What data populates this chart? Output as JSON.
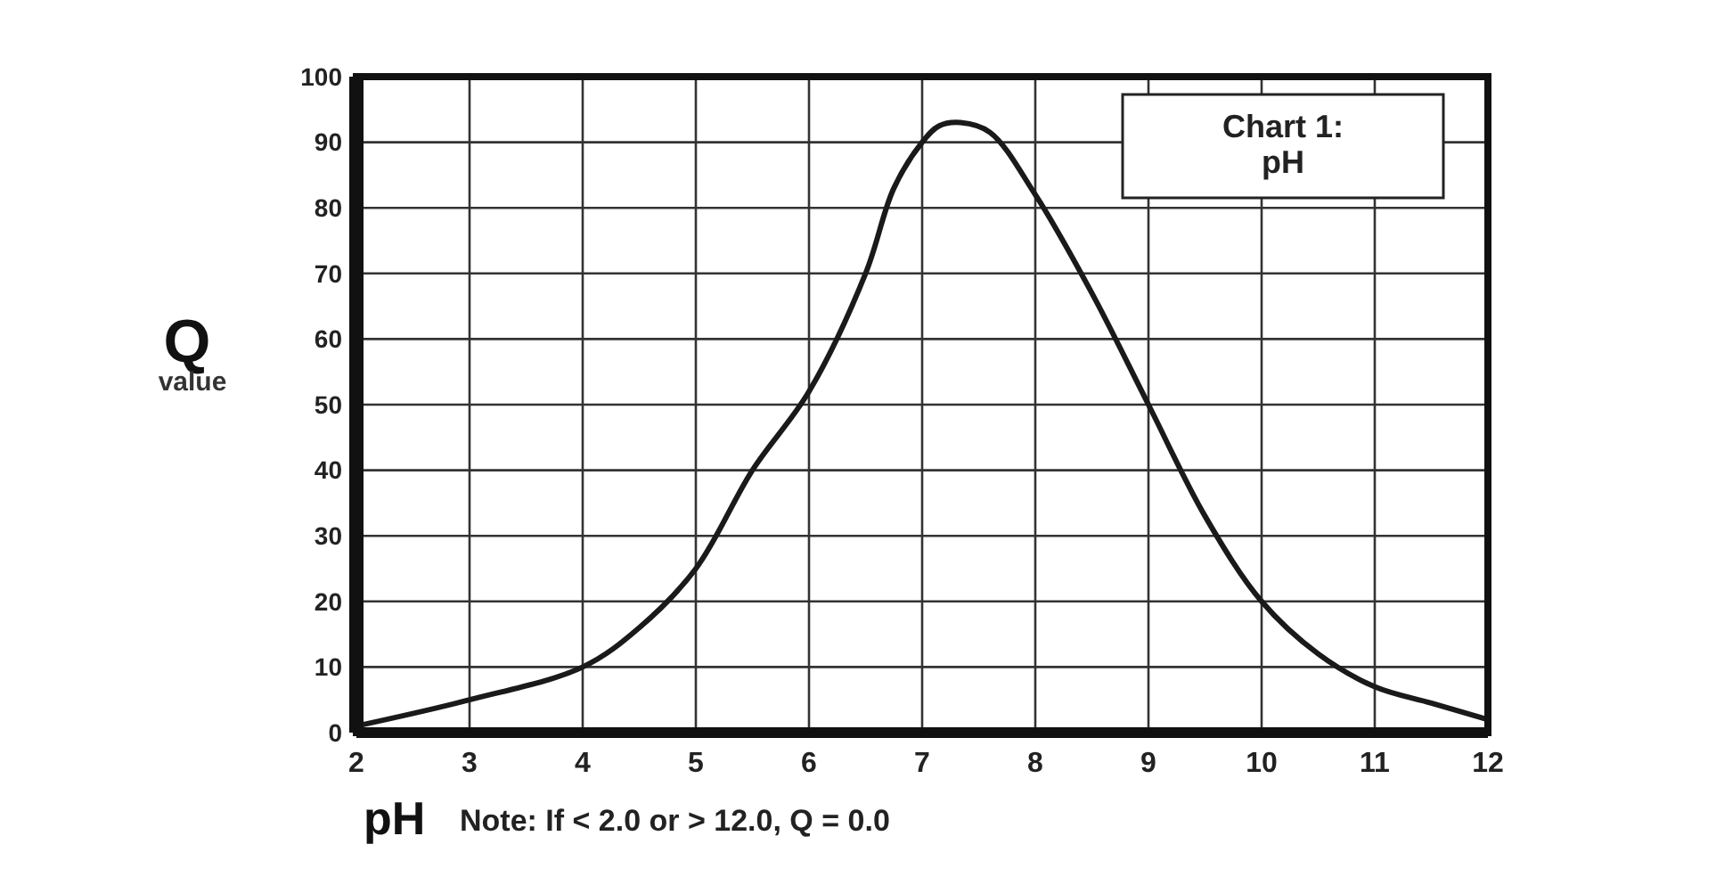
{
  "chart_data": {
    "type": "line",
    "title": "Chart 1: pH",
    "xlabel": "pH",
    "ylabel": "Q value",
    "annotations": [
      "Note: If < 2.0 or > 12.0, Q = 0.0"
    ],
    "x": [
      2,
      3,
      4,
      4.5,
      5,
      5.5,
      6,
      6.5,
      6.75,
      7,
      7.15,
      7.34,
      7.6,
      8,
      8.5,
      9,
      9.5,
      10,
      10.5,
      11,
      11.5,
      12
    ],
    "series": [
      {
        "color": "#1a1a1a",
        "values": [
          1,
          5,
          10,
          16,
          25,
          40,
          52,
          70,
          83,
          90,
          92.5,
          93,
          91.5,
          82,
          67,
          50,
          33,
          20,
          12,
          7,
          4.5,
          2
        ]
      }
    ],
    "xlim": [
      2,
      12
    ],
    "xticks": [
      2,
      3,
      4,
      5,
      6,
      7,
      8,
      9,
      10,
      11,
      12
    ],
    "ylim": [
      0,
      100
    ],
    "yticks": [
      0,
      10,
      20,
      30,
      40,
      50,
      60,
      70,
      80,
      90,
      100
    ],
    "grid": true,
    "marker": "none",
    "line_style": "solid"
  }
}
